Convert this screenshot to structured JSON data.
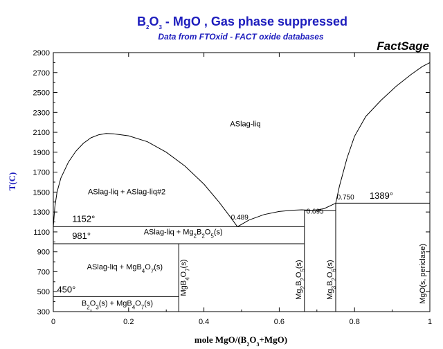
{
  "header": {
    "title_parts": [
      [
        "B",
        ""
      ],
      [
        "2",
        "sub"
      ],
      [
        "O",
        ""
      ],
      [
        "3",
        "sub"
      ],
      [
        " - MgO , Gas phase suppressed",
        ""
      ]
    ],
    "subtitle": "Data from FTOxid - FACT oxide databases",
    "brand": "FactSage"
  },
  "chart_data": {
    "type": "line",
    "title": "B2O3 - MgO , Gas phase suppressed",
    "subtitle": "Data from FTOxid - FACT oxide databases",
    "xlabel_parts": [
      [
        "mole MgO/(B",
        ""
      ],
      [
        "2",
        "sub"
      ],
      [
        "O",
        ""
      ],
      [
        "3",
        "sub"
      ],
      [
        "+MgO)",
        ""
      ]
    ],
    "ylabel": "T(C)",
    "xlim": [
      0,
      1
    ],
    "ylim": [
      300,
      2900
    ],
    "xticks": [
      0,
      0.2,
      0.4,
      0.6,
      0.8,
      1
    ],
    "xtick_labels": [
      "0",
      "0.2",
      "0.4",
      "0.6",
      "0.8",
      "1"
    ],
    "yticks": [
      300,
      500,
      700,
      900,
      1100,
      1300,
      1500,
      1700,
      1900,
      2100,
      2300,
      2500,
      2700,
      2900
    ],
    "grid": false,
    "series": [
      {
        "points": [
          [
            0.0,
            1152
          ],
          [
            0.004,
            1350
          ],
          [
            0.01,
            1500
          ],
          [
            0.02,
            1640
          ],
          [
            0.04,
            1800
          ],
          [
            0.06,
            1910
          ],
          [
            0.08,
            1990
          ],
          [
            0.1,
            2045
          ],
          [
            0.12,
            2075
          ],
          [
            0.14,
            2088
          ],
          [
            0.16,
            2085
          ],
          [
            0.2,
            2065
          ],
          [
            0.25,
            2005
          ],
          [
            0.3,
            1900
          ],
          [
            0.35,
            1760
          ],
          [
            0.4,
            1580
          ],
          [
            0.44,
            1400
          ],
          [
            0.47,
            1250
          ],
          [
            0.489,
            1152
          ]
        ]
      },
      {
        "points": [
          [
            0.489,
            1152
          ],
          [
            0.52,
            1220
          ],
          [
            0.56,
            1275
          ],
          [
            0.6,
            1305
          ],
          [
            0.635,
            1318
          ],
          [
            0.66,
            1322
          ],
          [
            0.695,
            1315
          ]
        ]
      },
      {
        "points": [
          [
            0.695,
            1315
          ],
          [
            0.72,
            1335
          ],
          [
            0.75,
            1389
          ]
        ]
      },
      {
        "points": [
          [
            0.75,
            1389
          ],
          [
            0.76,
            1560
          ],
          [
            0.78,
            1840
          ],
          [
            0.8,
            2060
          ],
          [
            0.83,
            2260
          ],
          [
            0.87,
            2420
          ],
          [
            0.91,
            2560
          ],
          [
            0.95,
            2680
          ],
          [
            0.98,
            2760
          ],
          [
            1.0,
            2800
          ]
        ]
      },
      {
        "points": [
          [
            0.0,
            1152
          ],
          [
            0.667,
            1152
          ]
        ]
      },
      {
        "points": [
          [
            0.0,
            981
          ],
          [
            0.667,
            981
          ]
        ]
      },
      {
        "points": [
          [
            0.0,
            450
          ],
          [
            0.333,
            450
          ]
        ]
      },
      {
        "points": [
          [
            0.667,
            1315
          ],
          [
            0.75,
            1315
          ]
        ]
      },
      {
        "points": [
          [
            0.75,
            1389
          ],
          [
            1.0,
            1389
          ]
        ]
      },
      {
        "points": [
          [
            0.333,
            300
          ],
          [
            0.333,
            981
          ]
        ]
      },
      {
        "points": [
          [
            0.667,
            300
          ],
          [
            0.667,
            1315
          ]
        ]
      },
      {
        "points": [
          [
            0.75,
            300
          ],
          [
            0.75,
            1389
          ]
        ]
      }
    ],
    "annotations": [
      {
        "parts": [
          [
            "ASlag-liq",
            ""
          ]
        ],
        "x": 0.51,
        "y": 2160
      },
      {
        "parts": [
          [
            "ASlag-liq + ASlag-liq#2",
            ""
          ]
        ],
        "x": 0.195,
        "y": 1480
      },
      {
        "parts": [
          [
            "ASlag-liq + Mg",
            ""
          ],
          [
            "2",
            "sub"
          ],
          [
            "B",
            ""
          ],
          [
            "2",
            "sub"
          ],
          [
            "O",
            ""
          ],
          [
            "5",
            "sub"
          ],
          [
            "(s)",
            ""
          ]
        ],
        "x": 0.345,
        "y": 1075
      },
      {
        "parts": [
          [
            "ASlag-liq + MgB",
            ""
          ],
          [
            "4",
            "sub"
          ],
          [
            "O",
            ""
          ],
          [
            "7",
            "sub"
          ],
          [
            "(s)",
            ""
          ]
        ],
        "x": 0.19,
        "y": 725
      },
      {
        "parts": [
          [
            "B",
            ""
          ],
          [
            "2",
            "sub"
          ],
          [
            "O",
            ""
          ],
          [
            "3",
            "sub"
          ],
          [
            "(s) + MgB",
            ""
          ],
          [
            "4",
            "sub"
          ],
          [
            "O",
            ""
          ],
          [
            "7",
            "sub"
          ],
          [
            "(s)",
            ""
          ]
        ],
        "x": 0.17,
        "y": 360
      }
    ],
    "vertical_labels": [
      {
        "parts": [
          [
            "MgB",
            ""
          ],
          [
            "4",
            "sub"
          ],
          [
            "O",
            ""
          ],
          [
            "7",
            "sub"
          ],
          [
            "(s)",
            ""
          ]
        ],
        "x": 0.352,
        "y": 640
      },
      {
        "parts": [
          [
            "Mg",
            ""
          ],
          [
            "2",
            "sub"
          ],
          [
            "B",
            ""
          ],
          [
            "2",
            "sub"
          ],
          [
            "O",
            ""
          ],
          [
            "5",
            "sub"
          ],
          [
            "(s)",
            ""
          ]
        ],
        "x": 0.658,
        "y": 620
      },
      {
        "parts": [
          [
            "Mg",
            ""
          ],
          [
            "3",
            "sub"
          ],
          [
            "B",
            ""
          ],
          [
            "2",
            "sub"
          ],
          [
            "O",
            ""
          ],
          [
            "6",
            "sub"
          ],
          [
            "(s)",
            ""
          ]
        ],
        "x": 0.741,
        "y": 620
      },
      {
        "parts": [
          [
            "MgO(s, periclase)",
            ""
          ]
        ],
        "x": 0.987,
        "y": 680
      }
    ],
    "temperature_labels": [
      {
        "text": "1152°",
        "x": 0.05,
        "y": 1200
      },
      {
        "text": "981°",
        "x": 0.05,
        "y": 1030
      },
      {
        "text": "450°",
        "x": 0.01,
        "y": 490
      },
      {
        "text": "1389°",
        "x": 0.84,
        "y": 1432
      }
    ],
    "composition_labels": [
      {
        "text": "0.489",
        "x": 0.472,
        "y": 1225
      },
      {
        "text": "0.695",
        "x": 0.672,
        "y": 1285
      },
      {
        "text": "0.750",
        "x": 0.753,
        "y": 1425
      }
    ]
  }
}
